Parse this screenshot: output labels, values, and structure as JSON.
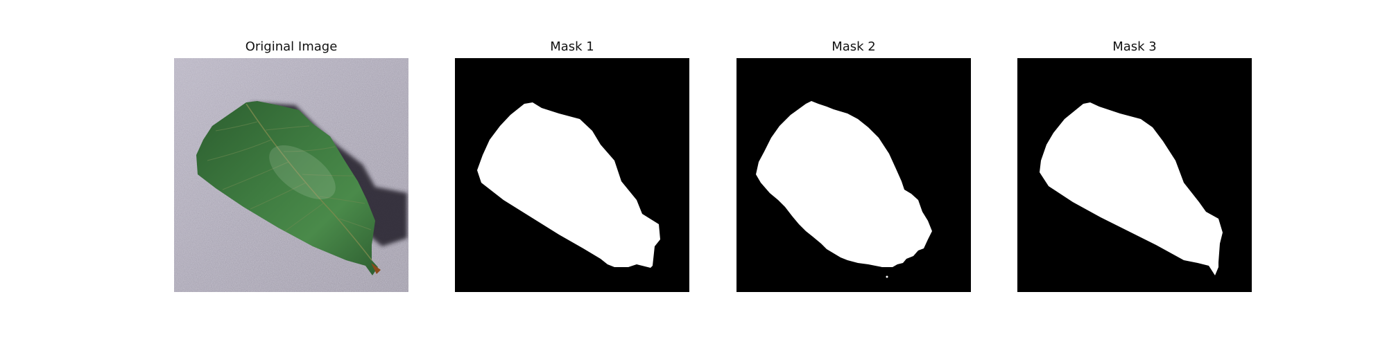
{
  "figure": {
    "panels": [
      {
        "title": "Original Image",
        "content": "green leaf photograph on grey textured surface"
      },
      {
        "title": "Mask 1",
        "content": "binary segmentation mask"
      },
      {
        "title": "Mask 2",
        "content": "binary segmentation mask"
      },
      {
        "title": "Mask 3",
        "content": "binary segmentation mask"
      }
    ],
    "colors": {
      "background": "#ffffff",
      "mask_foreground": "#ffffff",
      "mask_background": "#000000",
      "leaf_dark": "#1f4a24",
      "leaf_mid": "#3d7a3f",
      "surface": "#aaa6b3"
    }
  }
}
